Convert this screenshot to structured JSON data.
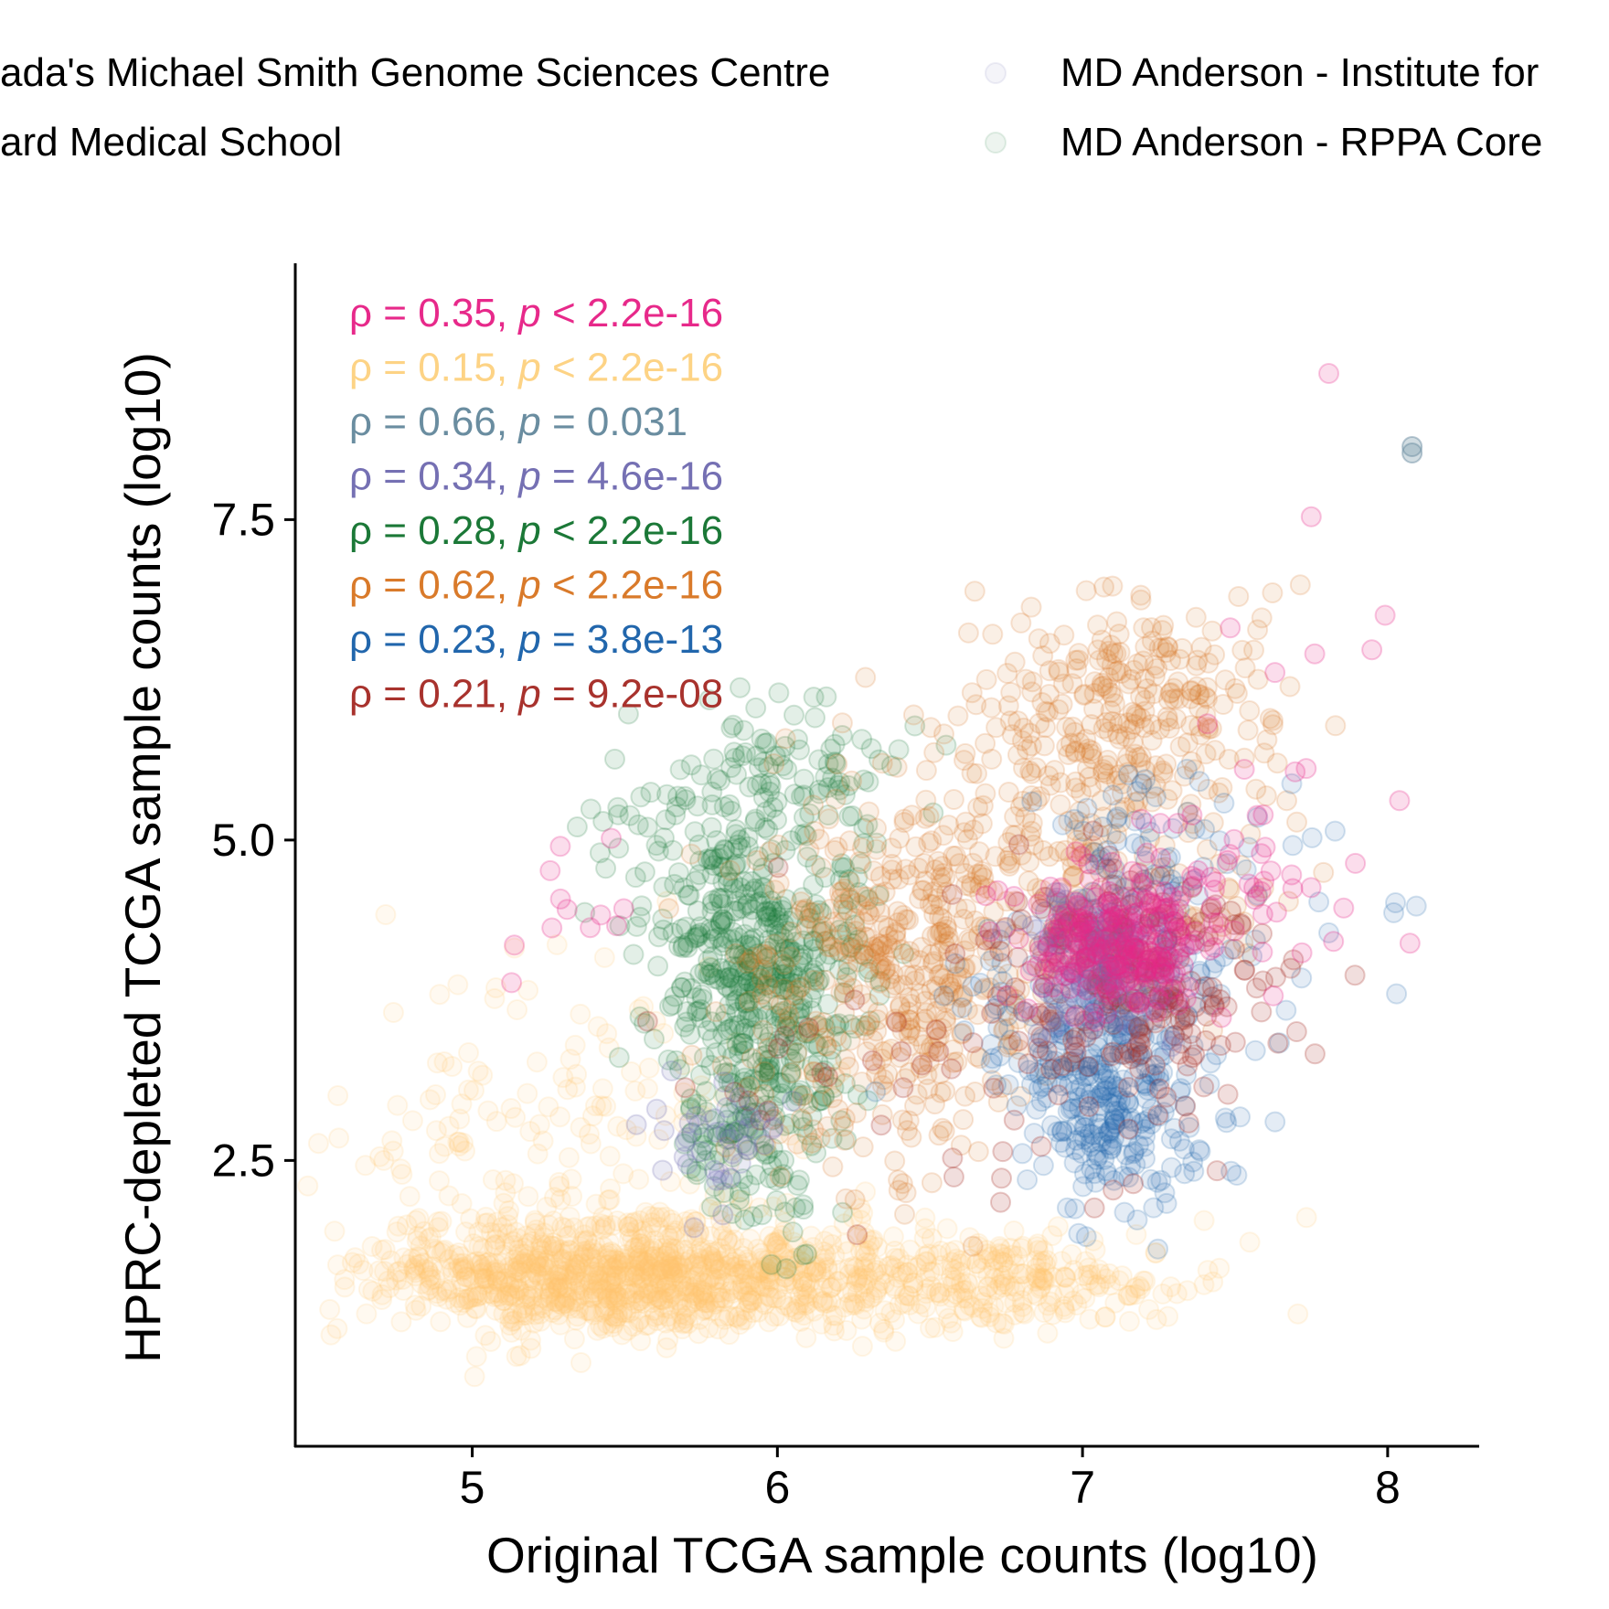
{
  "chart_data": {
    "type": "scatter",
    "title": "",
    "xlabel": "Original TCGA sample counts (log10)",
    "ylabel": "HPRC-depleted TCGA sample counts (log10)",
    "xlim": [
      4.42,
      8.3
    ],
    "ylim": [
      0.27,
      9.5
    ],
    "x_ticks": [
      "5",
      "6",
      "7",
      "8"
    ],
    "y_ticks": [
      "2.5",
      "5.0",
      "7.5"
    ],
    "grid": false,
    "legend_position": "top",
    "legend": [
      {
        "label": "ada's Michael Smith Genome Sciences Centre",
        "color": "#e7298a",
        "side": "left",
        "row": 0
      },
      {
        "label": "ard Medical School",
        "color": "#fdc86e",
        "side": "left",
        "row": 1
      },
      {
        "label": "MD Anderson - Institute for",
        "color": "#7570b3",
        "side": "right",
        "row": 0
      },
      {
        "label": "MD Anderson - RPPA Core",
        "color": "#1b7837",
        "side": "right",
        "row": 1
      }
    ],
    "annotations": [
      {
        "rho": "0.35",
        "op": "<",
        "p": "2.2e-16",
        "color": "#e7298a"
      },
      {
        "rho": "0.15",
        "op": "<",
        "p": "2.2e-16",
        "color": "#fdd385"
      },
      {
        "rho": "0.66",
        "op": "=",
        "p": "0.031",
        "color": "#6a8da0"
      },
      {
        "rho": "0.34",
        "op": "=",
        "p": "4.6e-16",
        "color": "#7570b3"
      },
      {
        "rho": "0.28",
        "op": "<",
        "p": "2.2e-16",
        "color": "#1b7837"
      },
      {
        "rho": "0.62",
        "op": "<",
        "p": "2.2e-16",
        "color": "#d97a2a"
      },
      {
        "rho": "0.23",
        "op": "=",
        "p": "3.8e-13",
        "color": "#2166ac"
      },
      {
        "rho": "0.21",
        "op": "=",
        "p": "9.2e-08",
        "color": "#a8322d"
      }
    ],
    "series": [
      {
        "color": "#fdc86e",
        "opacity": 0.1,
        "clusters": [
          {
            "cx": 5.45,
            "cy": 1.6,
            "sx": 0.38,
            "sy": 0.22,
            "n": 900
          },
          {
            "cx": 6.4,
            "cy": 1.6,
            "sx": 0.45,
            "sy": 0.2,
            "n": 350
          },
          {
            "cx": 5.3,
            "cy": 2.6,
            "sx": 0.35,
            "sy": 0.7,
            "n": 180
          },
          {
            "cx": 6.9,
            "cy": 1.5,
            "sx": 0.2,
            "sy": 0.15,
            "n": 70
          }
        ]
      },
      {
        "color": "#1b7837",
        "opacity": 0.12,
        "clusters": [
          {
            "cx": 5.95,
            "cy": 4.1,
            "sx": 0.18,
            "sy": 0.45,
            "n": 330
          },
          {
            "cx": 5.95,
            "cy": 3.0,
            "sx": 0.12,
            "sy": 0.55,
            "n": 200
          },
          {
            "cx": 5.85,
            "cy": 5.0,
            "sx": 0.22,
            "sy": 0.4,
            "n": 110
          },
          {
            "cx": 6.05,
            "cy": 5.6,
            "sx": 0.2,
            "sy": 0.3,
            "n": 60
          }
        ]
      },
      {
        "color": "#d97a2a",
        "opacity": 0.12,
        "clusters": [
          {
            "cx": 6.45,
            "cy": 4.2,
            "sx": 0.25,
            "sy": 0.6,
            "n": 330
          },
          {
            "cx": 7.0,
            "cy": 5.2,
            "sx": 0.3,
            "sy": 0.7,
            "n": 280
          },
          {
            "cx": 7.2,
            "cy": 6.1,
            "sx": 0.25,
            "sy": 0.45,
            "n": 150
          },
          {
            "cx": 6.3,
            "cy": 3.3,
            "sx": 0.2,
            "sy": 0.5,
            "n": 120
          }
        ]
      },
      {
        "color": "#2166ac",
        "opacity": 0.12,
        "clusters": [
          {
            "cx": 7.05,
            "cy": 3.4,
            "sx": 0.2,
            "sy": 0.5,
            "n": 260
          },
          {
            "cx": 7.1,
            "cy": 2.7,
            "sx": 0.12,
            "sy": 0.3,
            "n": 110
          },
          {
            "cx": 7.2,
            "cy": 4.6,
            "sx": 0.15,
            "sy": 0.5,
            "n": 90
          },
          {
            "cx": 7.6,
            "cy": 4.3,
            "sx": 0.2,
            "sy": 0.8,
            "n": 30
          }
        ]
      },
      {
        "color": "#a8322d",
        "opacity": 0.16,
        "clusters": [
          {
            "cx": 7.15,
            "cy": 3.9,
            "sx": 0.22,
            "sy": 0.45,
            "n": 230
          },
          {
            "cx": 6.4,
            "cy": 3.2,
            "sx": 0.4,
            "sy": 0.6,
            "n": 40
          }
        ]
      },
      {
        "color": "#7570b3",
        "opacity": 0.15,
        "clusters": [
          {
            "cx": 7.05,
            "cy": 4.0,
            "sx": 0.12,
            "sy": 0.3,
            "n": 120
          },
          {
            "cx": 5.8,
            "cy": 2.65,
            "sx": 0.12,
            "sy": 0.25,
            "n": 40
          }
        ]
      },
      {
        "color": "#e7298a",
        "opacity": 0.16,
        "clusters": [
          {
            "cx": 7.12,
            "cy": 4.15,
            "sx": 0.16,
            "sy": 0.25,
            "n": 240
          },
          {
            "cx": 7.45,
            "cy": 4.6,
            "sx": 0.2,
            "sy": 0.3,
            "n": 50
          },
          {
            "cx": 5.3,
            "cy": 4.4,
            "sx": 0.15,
            "sy": 0.3,
            "n": 12
          },
          {
            "cx": 7.8,
            "cy": 6.5,
            "sx": 0.25,
            "sy": 1.0,
            "n": 12
          }
        ]
      },
      {
        "color": "#6a8da0",
        "opacity": 0.3,
        "points": [
          [
            8.08,
            8.02
          ],
          [
            8.08,
            8.07
          ]
        ]
      }
    ]
  }
}
